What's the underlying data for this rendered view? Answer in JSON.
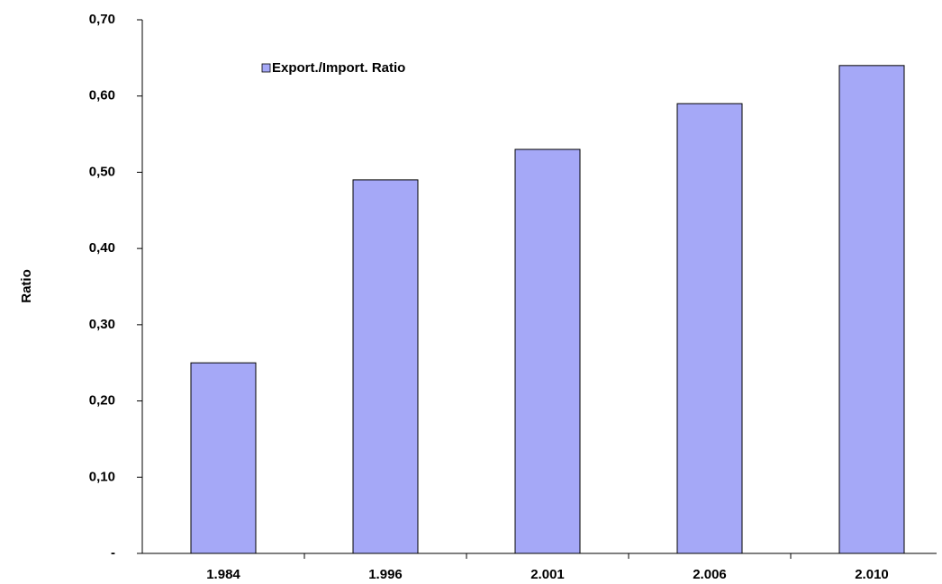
{
  "chart_data": {
    "type": "bar",
    "y_label": "Ratio",
    "categories": [
      "1.984",
      "1.996",
      "2.001",
      "2.006",
      "2.010"
    ],
    "series": [
      {
        "name": "Export./Import. Ratio",
        "color": "#a5a8f7",
        "values": [
          0.25,
          0.49,
          0.53,
          0.59,
          0.64
        ]
      }
    ],
    "ylim": [
      0,
      0.7
    ],
    "yticks": [
      {
        "value": 0,
        "label": "-"
      },
      {
        "value": 0.1,
        "label": "0,10"
      },
      {
        "value": 0.2,
        "label": "0,20"
      },
      {
        "value": 0.3,
        "label": "0,30"
      },
      {
        "value": 0.4,
        "label": "0,40"
      },
      {
        "value": 0.5,
        "label": "0,50"
      },
      {
        "value": 0.6,
        "label": "0,60"
      },
      {
        "value": 0.7,
        "label": "0,70"
      }
    ],
    "grid": false
  }
}
